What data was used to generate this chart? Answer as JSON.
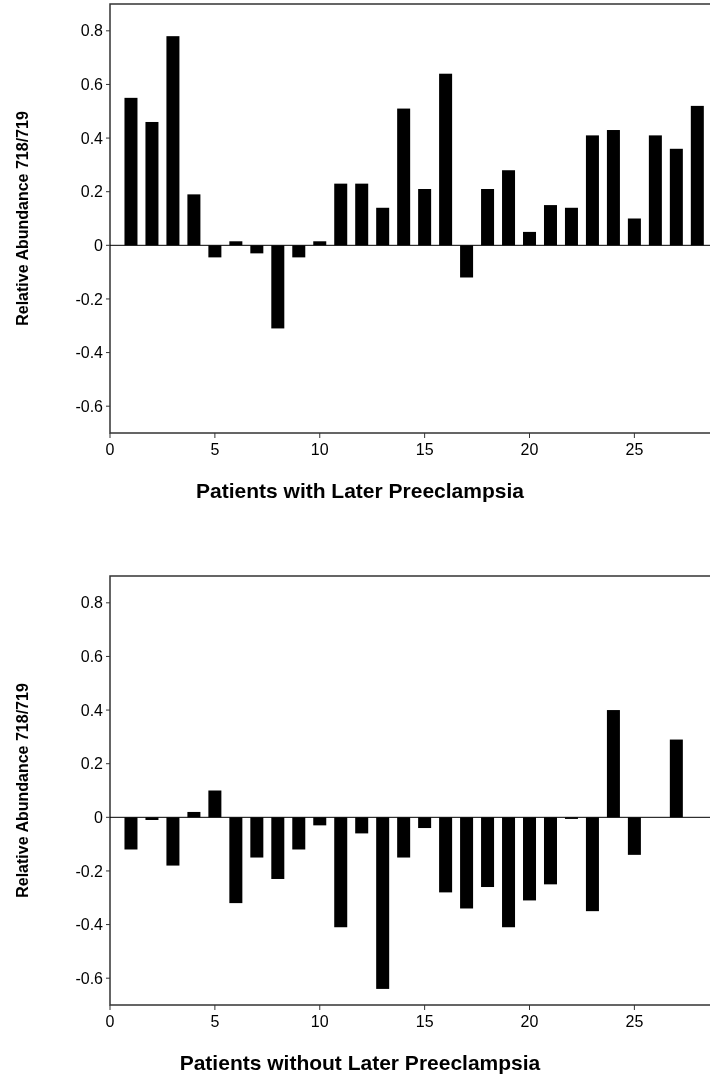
{
  "chart_data": [
    {
      "type": "bar",
      "xlabel": "Patients with Later Preeclampsia",
      "ylabel": "Relative Abundance 718/719",
      "color": "#000000",
      "x": [
        1,
        2,
        3,
        4,
        5,
        6,
        7,
        8,
        9,
        10,
        11,
        12,
        13,
        14,
        15,
        16,
        17,
        18,
        19,
        20,
        21,
        22,
        23,
        24,
        25,
        26,
        27,
        28
      ],
      "values": [
        0.55,
        0.46,
        0.78,
        0.19,
        -0.045,
        0.015,
        -0.03,
        -0.31,
        -0.045,
        0.015,
        0.23,
        0.23,
        0.14,
        0.51,
        0.21,
        0.64,
        -0.12,
        0.21,
        0.28,
        0.05,
        0.15,
        0.14,
        0.41,
        0.43,
        0.1,
        0.41,
        0.36,
        0.52
      ],
      "xlim": [
        0,
        28.7
      ],
      "ylim": [
        -0.7,
        0.9
      ],
      "xticks": [
        0,
        5,
        10,
        15,
        20,
        25
      ],
      "yticks": [
        -0.6,
        -0.4,
        -0.2,
        0,
        0.2,
        0.4,
        0.6,
        0.8
      ]
    },
    {
      "type": "bar",
      "xlabel": "Patients without Later Preeclampsia",
      "ylabel": "Relative Abundance 718/719",
      "color": "#000000",
      "x": [
        1,
        2,
        3,
        4,
        5,
        6,
        7,
        8,
        9,
        10,
        11,
        12,
        13,
        14,
        15,
        16,
        17,
        18,
        19,
        20,
        21,
        22,
        23,
        24,
        25,
        27
      ],
      "values": [
        -0.12,
        -0.01,
        -0.18,
        0.02,
        0.1,
        -0.32,
        -0.15,
        -0.23,
        -0.12,
        -0.03,
        -0.41,
        -0.06,
        -0.64,
        -0.15,
        -0.04,
        -0.28,
        -0.34,
        -0.26,
        -0.41,
        -0.31,
        -0.25,
        -0.006,
        -0.35,
        0.4,
        -0.14,
        0.29
      ],
      "xlim": [
        0,
        28.7
      ],
      "ylim": [
        -0.7,
        0.9
      ],
      "xticks": [
        0,
        5,
        10,
        15,
        20,
        25
      ],
      "yticks": [
        -0.6,
        -0.4,
        -0.2,
        0,
        0.2,
        0.4,
        0.6,
        0.8
      ]
    }
  ]
}
